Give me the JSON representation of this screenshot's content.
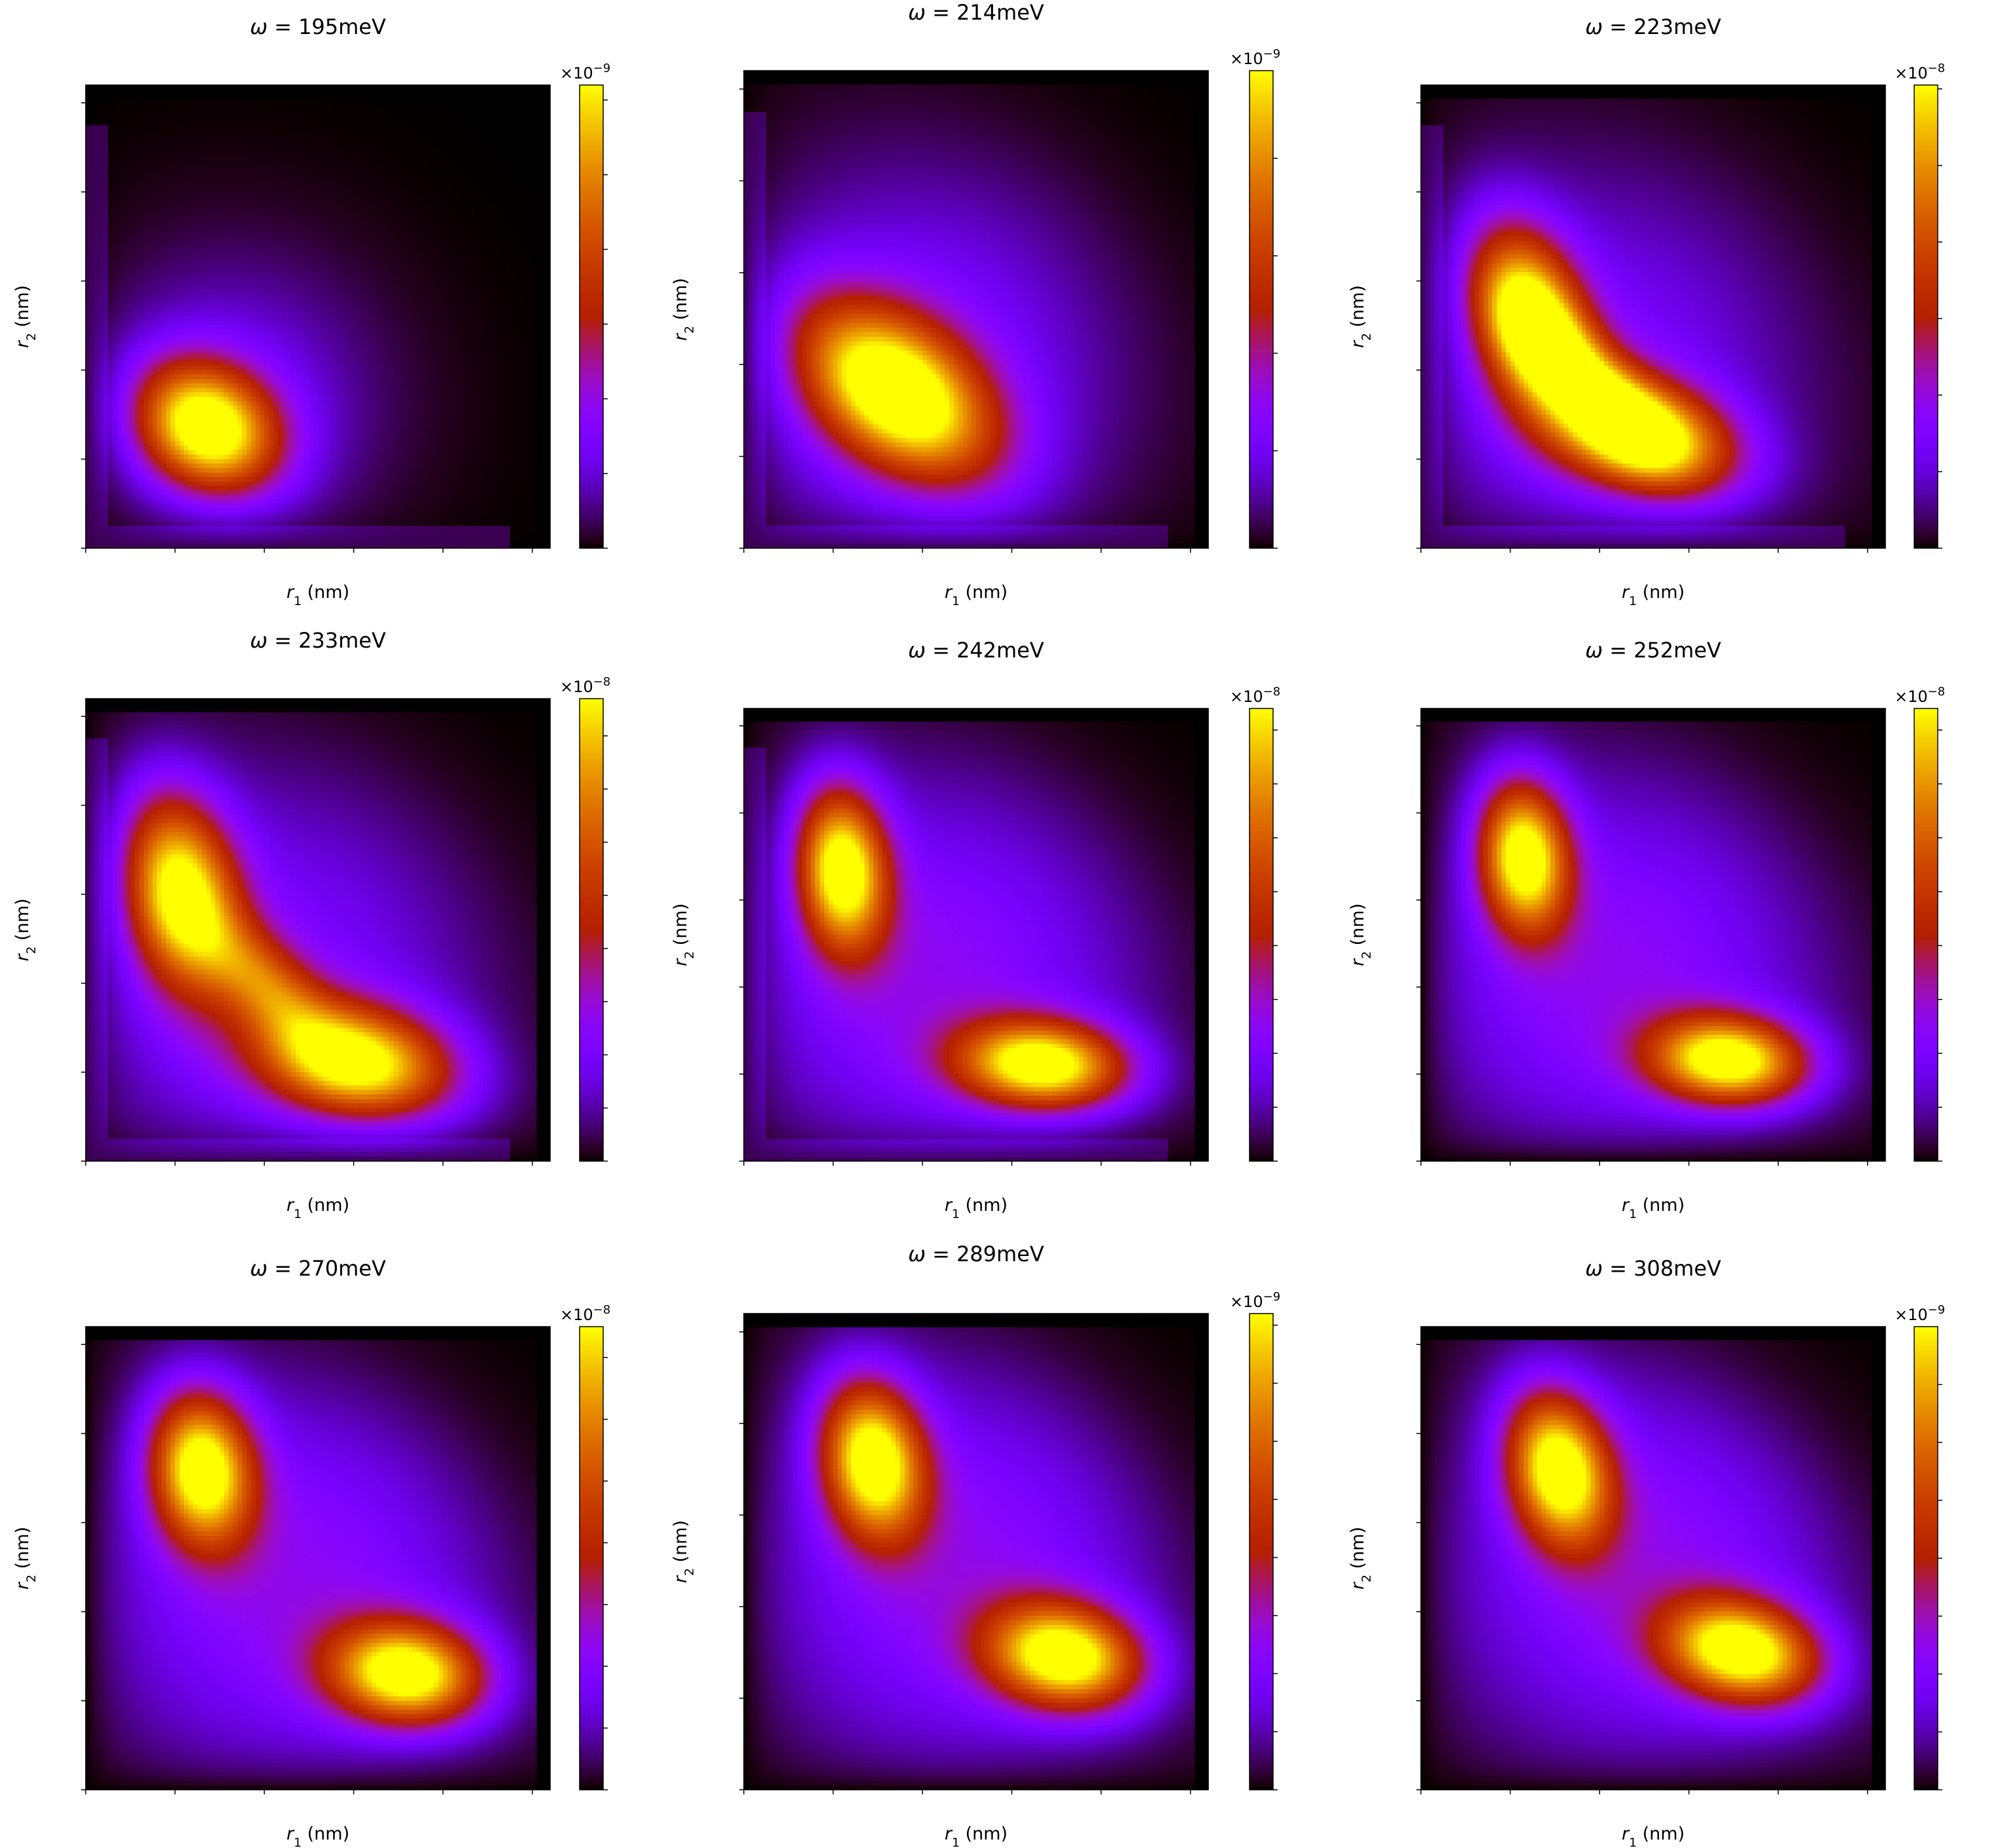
{
  "figure": {
    "colormap": "gnuplot",
    "x_range": [
      0,
      104
    ],
    "y_range": [
      0,
      104
    ],
    "xlabel_var": "r",
    "xlabel_sub": "1",
    "xlabel_unit": " (nm)",
    "ylabel_var": "r",
    "ylabel_sub": "2",
    "ylabel_unit": " (nm)",
    "x_ticks": [
      "0",
      "20",
      "40",
      "60",
      "80",
      "100"
    ],
    "y_ticks": [
      "0",
      "20",
      "40",
      "60",
      "80",
      "100"
    ],
    "multiplier_base": "×10",
    "title_omega": "ω"
  },
  "chart_data": [
    {
      "type": "heatmap",
      "title_value": " = 195meV",
      "xlabel": "r1 (nm)",
      "ylabel": "r2 (nm)",
      "xlim": [
        0,
        104
      ],
      "ylim": [
        0,
        104
      ],
      "colorbar": {
        "min": 0,
        "max": 3.1,
        "ticks": [
          "0.0",
          "0.5",
          "1.0",
          "1.5",
          "2.0",
          "2.5",
          "3.0"
        ],
        "exponent": "−9"
      },
      "blobs": [
        {
          "x": 27,
          "y": 27,
          "sx": 11,
          "sy": 10,
          "rho": -0.2,
          "amp": 1.0
        }
      ],
      "halo": {
        "x": 32,
        "y": 32,
        "s": 22,
        "amp": 0.22
      },
      "edge_streak": true
    },
    {
      "type": "heatmap",
      "title_value": " = 214meV",
      "xlabel": "r1 (nm)",
      "ylabel": "r2 (nm)",
      "xlim": [
        0,
        104
      ],
      "ylim": [
        0,
        104
      ],
      "colorbar": {
        "min": 0,
        "max": 9.8,
        "ticks": [
          "0",
          "2",
          "4",
          "6",
          "8"
        ],
        "exponent": "−9"
      },
      "blobs": [
        {
          "x": 34,
          "y": 34,
          "sx": 15,
          "sy": 13,
          "rho": -0.45,
          "amp": 1.0
        }
      ],
      "halo": {
        "x": 38,
        "y": 38,
        "s": 30,
        "amp": 0.28
      },
      "edge_streak": true
    },
    {
      "type": "heatmap",
      "title_value": " = 223meV",
      "xlabel": "r1 (nm)",
      "ylabel": "r2 (nm)",
      "xlim": [
        0,
        104
      ],
      "ylim": [
        0,
        104
      ],
      "colorbar": {
        "min": 0,
        "max": 1.21,
        "ticks": [
          "0.0",
          "0.2",
          "0.4",
          "0.6",
          "0.8",
          "1.0",
          "1.2"
        ],
        "exponent": "−8"
      },
      "blobs": [
        {
          "x": 24,
          "y": 52,
          "sx": 9,
          "sy": 14,
          "rho": -0.3,
          "amp": 0.95
        },
        {
          "x": 50,
          "y": 25,
          "sx": 14,
          "sy": 9,
          "rho": -0.3,
          "amp": 0.95
        },
        {
          "x": 37,
          "y": 38,
          "sx": 11,
          "sy": 11,
          "rho": -0.7,
          "amp": 0.55
        }
      ],
      "halo": {
        "x": 38,
        "y": 38,
        "s": 32,
        "amp": 0.25
      },
      "edge_streak": true
    },
    {
      "type": "heatmap",
      "title_value": " = 233meV",
      "xlabel": "r1 (nm)",
      "ylabel": "r2 (nm)",
      "xlim": [
        0,
        104
      ],
      "ylim": [
        0,
        104
      ],
      "colorbar": {
        "min": 0,
        "max": 1.74,
        "ticks": [
          "0.0",
          "0.2",
          "0.4",
          "0.6",
          "0.8",
          "1.0",
          "1.2",
          "1.4",
          "1.6"
        ],
        "exponent": "−8"
      },
      "blobs": [
        {
          "x": 21,
          "y": 61,
          "sx": 9,
          "sy": 15,
          "rho": -0.2,
          "amp": 0.95
        },
        {
          "x": 61,
          "y": 22,
          "sx": 15,
          "sy": 9,
          "rho": -0.2,
          "amp": 0.95
        },
        {
          "x": 40,
          "y": 40,
          "sx": 10,
          "sy": 10,
          "rho": -0.6,
          "amp": 0.45
        }
      ],
      "halo": {
        "x": 40,
        "y": 40,
        "s": 33,
        "amp": 0.26
      },
      "edge_streak": true
    },
    {
      "type": "heatmap",
      "title_value": " = 242meV",
      "xlabel": "r1 (nm)",
      "ylabel": "r2 (nm)",
      "xlim": [
        0,
        104
      ],
      "ylim": [
        0,
        104
      ],
      "colorbar": {
        "min": 0,
        "max": 2.1,
        "ticks": [
          "0.00",
          "0.25",
          "0.50",
          "0.75",
          "1.00",
          "1.25",
          "1.50",
          "1.75",
          "2.00"
        ],
        "exponent": "−8"
      },
      "blobs": [
        {
          "x": 22,
          "y": 67,
          "sx": 7,
          "sy": 13,
          "rho": -0.1,
          "amp": 1.0
        },
        {
          "x": 67,
          "y": 22,
          "sx": 13,
          "sy": 7,
          "rho": -0.1,
          "amp": 1.0
        }
      ],
      "halo": {
        "x": 42,
        "y": 42,
        "s": 33,
        "amp": 0.3
      },
      "edge_streak": true
    },
    {
      "type": "heatmap",
      "title_value": " = 252meV",
      "xlabel": "r1 (nm)",
      "ylabel": "r2 (nm)",
      "xlim": [
        0,
        104
      ],
      "ylim": [
        0,
        104
      ],
      "colorbar": {
        "min": 0,
        "max": 2.1,
        "ticks": [
          "0.00",
          "0.25",
          "0.50",
          "0.75",
          "1.00",
          "1.25",
          "1.50",
          "1.75",
          "2.00"
        ],
        "exponent": "−8"
      },
      "blobs": [
        {
          "x": 23,
          "y": 70,
          "sx": 7,
          "sy": 12,
          "rho": -0.1,
          "amp": 1.0
        },
        {
          "x": 69,
          "y": 23,
          "sx": 12,
          "sy": 7,
          "rho": -0.1,
          "amp": 1.0
        }
      ],
      "halo": {
        "x": 43,
        "y": 43,
        "s": 33,
        "amp": 0.3
      },
      "edge_streak": false
    },
    {
      "type": "heatmap",
      "title_value": " = 270meV",
      "xlabel": "r1 (nm)",
      "ylabel": "r2 (nm)",
      "xlim": [
        0,
        104
      ],
      "ylim": [
        0,
        104
      ],
      "colorbar": {
        "min": 0,
        "max": 1.5,
        "ticks": [
          "0.0",
          "0.2",
          "0.4",
          "0.6",
          "0.8",
          "1.0",
          "1.2",
          "1.4"
        ],
        "exponent": "−8"
      },
      "blobs": [
        {
          "x": 26,
          "y": 72,
          "sx": 8,
          "sy": 12,
          "rho": -0.1,
          "amp": 1.0
        },
        {
          "x": 72,
          "y": 26,
          "sx": 12,
          "sy": 8,
          "rho": -0.1,
          "amp": 1.0
        }
      ],
      "halo": {
        "x": 46,
        "y": 46,
        "s": 33,
        "amp": 0.3
      },
      "edge_streak": false
    },
    {
      "type": "heatmap",
      "title_value": " = 289meV",
      "xlabel": "r1 (nm)",
      "ylabel": "r2 (nm)",
      "xlim": [
        0,
        104
      ],
      "ylim": [
        0,
        104
      ],
      "colorbar": {
        "min": 0,
        "max": 8.2,
        "ticks": [
          "0",
          "1",
          "2",
          "3",
          "4",
          "5",
          "6",
          "7",
          "8"
        ],
        "exponent": "−9"
      },
      "blobs": [
        {
          "x": 29,
          "y": 72,
          "sx": 8,
          "sy": 12,
          "rho": -0.15,
          "amp": 1.0
        },
        {
          "x": 72,
          "y": 29,
          "sx": 12,
          "sy": 8,
          "rho": -0.15,
          "amp": 1.0
        }
      ],
      "halo": {
        "x": 48,
        "y": 48,
        "s": 33,
        "amp": 0.3
      },
      "edge_streak": false
    },
    {
      "type": "heatmap",
      "title_value": " = 308meV",
      "xlabel": "r1 (nm)",
      "ylabel": "r2 (nm)",
      "xlim": [
        0,
        104
      ],
      "ylim": [
        0,
        104
      ],
      "colorbar": {
        "min": 0,
        "max": 4.0,
        "ticks": [
          "0.0",
          "0.5",
          "1.0",
          "1.5",
          "2.0",
          "2.5",
          "3.0",
          "3.5"
        ],
        "exponent": "−9"
      },
      "blobs": [
        {
          "x": 31,
          "y": 72,
          "sx": 8,
          "sy": 12,
          "rho": -0.2,
          "amp": 1.0
        },
        {
          "x": 72,
          "y": 31,
          "sx": 12,
          "sy": 8,
          "rho": -0.2,
          "amp": 1.0
        }
      ],
      "halo": {
        "x": 50,
        "y": 50,
        "s": 33,
        "amp": 0.3
      },
      "edge_streak": false
    }
  ]
}
